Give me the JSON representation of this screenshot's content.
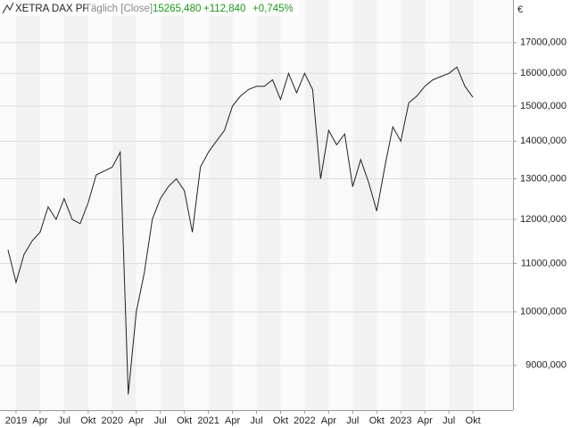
{
  "chart_data": {
    "type": "line",
    "title": "XETRA DAX PF",
    "subtitle": "Täglich [Close]",
    "last_value": "15265,480",
    "change": "+112,840",
    "change_percent": "+0,745%",
    "currency": "€",
    "log_scale": true,
    "grid": true,
    "color": "#222222",
    "x": [
      "2018-12",
      "2019-01",
      "2019-02",
      "2019-03",
      "2019-04",
      "2019-05",
      "2019-06",
      "2019-07",
      "2019-08",
      "2019-09",
      "2019-10",
      "2019-11",
      "2019-12",
      "2020-01",
      "2020-02",
      "2020-03",
      "2020-04",
      "2020-05",
      "2020-06",
      "2020-07",
      "2020-08",
      "2020-09",
      "2020-10",
      "2020-11",
      "2020-12",
      "2021-01",
      "2021-02",
      "2021-03",
      "2021-04",
      "2021-05",
      "2021-06",
      "2021-07",
      "2021-08",
      "2021-09",
      "2021-10",
      "2021-11",
      "2021-12",
      "2022-01",
      "2022-02",
      "2022-03",
      "2022-04",
      "2022-05",
      "2022-06",
      "2022-07",
      "2022-08",
      "2022-09",
      "2022-10",
      "2022-11",
      "2022-12",
      "2023-01",
      "2023-02",
      "2023-03",
      "2023-04",
      "2023-05",
      "2023-06",
      "2023-07",
      "2023-08",
      "2023-09",
      "2023-10"
    ],
    "values": [
      11300,
      10600,
      11200,
      11500,
      11700,
      12300,
      12000,
      12500,
      12000,
      11900,
      12400,
      13100,
      13200,
      13300,
      13700,
      8500,
      10000,
      10800,
      12000,
      12500,
      12800,
      13000,
      12700,
      11700,
      13300,
      13700,
      14000,
      14300,
      15000,
      15300,
      15500,
      15600,
      15600,
      15800,
      15200,
      16000,
      15400,
      16000,
      15500,
      13000,
      14300,
      13900,
      14200,
      12800,
      13500,
      12900,
      12200,
      13300,
      14400,
      14000,
      15100,
      15300,
      15600,
      15800,
      15900,
      16000,
      16200,
      15600,
      15265.48
    ],
    "xlim": [
      "2018-11",
      "2024-03"
    ],
    "xticks": [
      {
        "value": "2019-01",
        "label": "2019"
      },
      {
        "value": "2019-04",
        "label": "Apr"
      },
      {
        "value": "2019-07",
        "label": "Jul"
      },
      {
        "value": "2019-10",
        "label": "Okt"
      },
      {
        "value": "2020-01",
        "label": "2020"
      },
      {
        "value": "2020-04",
        "label": "Apr"
      },
      {
        "value": "2020-07",
        "label": "Jul"
      },
      {
        "value": "2020-10",
        "label": "Okt"
      },
      {
        "value": "2021-01",
        "label": "2021"
      },
      {
        "value": "2021-04",
        "label": "Apr"
      },
      {
        "value": "2021-07",
        "label": "Jul"
      },
      {
        "value": "2021-10",
        "label": "Okt"
      },
      {
        "value": "2022-01",
        "label": "2022"
      },
      {
        "value": "2022-04",
        "label": "Apr"
      },
      {
        "value": "2022-07",
        "label": "Jul"
      },
      {
        "value": "2022-10",
        "label": "Okt"
      },
      {
        "value": "2023-01",
        "label": "2023"
      },
      {
        "value": "2023-04",
        "label": "Apr"
      },
      {
        "value": "2023-07",
        "label": "Jul"
      },
      {
        "value": "2023-10",
        "label": "Okt"
      }
    ],
    "ylim": [
      8240,
      18490
    ],
    "yticks": [
      {
        "value": 9000,
        "label": "9000,000"
      },
      {
        "value": 10000,
        "label": "10000,000"
      },
      {
        "value": 11000,
        "label": "11000,000"
      },
      {
        "value": 12000,
        "label": "12000,000"
      },
      {
        "value": 13000,
        "label": "13000,000"
      },
      {
        "value": 14000,
        "label": "14000,000"
      },
      {
        "value": 15000,
        "label": "15000,000"
      },
      {
        "value": 16000,
        "label": "16000,000"
      },
      {
        "value": 17000,
        "label": "17000,000"
      }
    ]
  }
}
